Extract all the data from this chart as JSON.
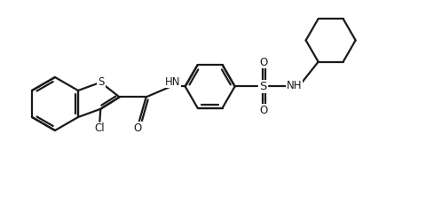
{
  "bg_color": "#ffffff",
  "line_color": "#1a1a1a",
  "line_width": 1.6,
  "font_size": 8.5,
  "figsize": [
    4.8,
    2.22
  ],
  "dpi": 100,
  "xlim": [
    0,
    480
  ],
  "ylim": [
    0,
    222
  ]
}
